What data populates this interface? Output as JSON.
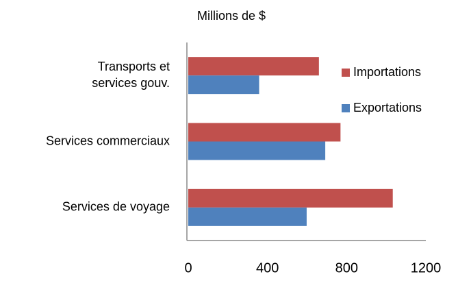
{
  "chart_data": {
    "type": "hbar",
    "axis_label": "Millions de $",
    "categories": [
      "Transports et\nservices gouv.",
      "Services commerciaux",
      "Services de voyage"
    ],
    "series": [
      {
        "name": "Importations",
        "color": "#c0504d",
        "values": [
          660,
          769,
          1033
        ]
      },
      {
        "name": "Exportations",
        "color": "#4f81bd",
        "values": [
          358,
          692,
          598
        ]
      }
    ],
    "xlim": [
      0,
      1200
    ],
    "xticks": [
      0,
      400,
      800,
      1200
    ],
    "grid": false,
    "legend": "right"
  }
}
